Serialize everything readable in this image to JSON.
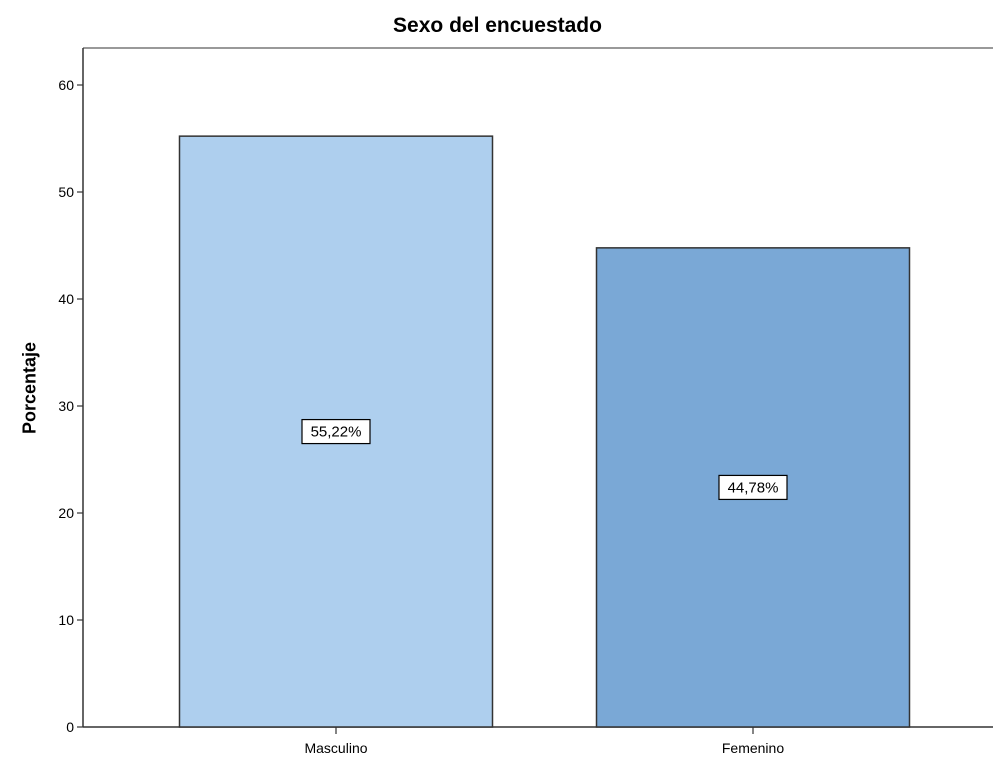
{
  "chart_data": {
    "type": "bar",
    "title": "Sexo del encuestado",
    "xlabel": "",
    "ylabel": "Porcentaje",
    "categories": [
      "Masculino",
      "Femenino"
    ],
    "values": [
      55.22,
      44.78
    ],
    "data_labels": [
      "55,22%",
      "44,78%"
    ],
    "bar_colors": [
      "#aecfee",
      "#7aa8d6"
    ],
    "ylim": [
      0,
      60
    ],
    "yticks": [
      0,
      10,
      20,
      30,
      40,
      50,
      60
    ],
    "grid": false,
    "legend": "none"
  }
}
